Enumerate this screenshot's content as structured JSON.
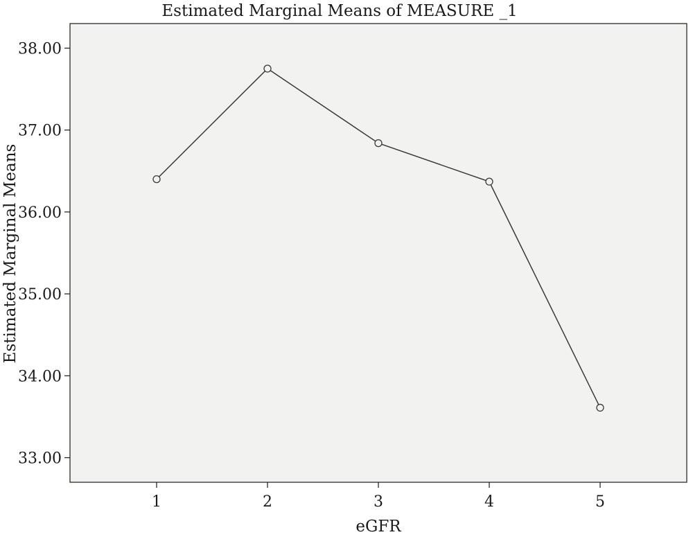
{
  "chart_data": {
    "type": "line",
    "title": "Estimated Marginal Means of MEASURE _1",
    "xlabel": "eGFR",
    "ylabel": "Estimated Marginal Means",
    "categories": [
      "1",
      "2",
      "3",
      "4",
      "5"
    ],
    "series": [
      {
        "values": [
          36.4,
          37.75,
          36.84,
          36.37,
          33.61
        ]
      }
    ],
    "ylim": [
      32.7,
      38.3
    ],
    "yticks": [
      33.0,
      34.0,
      35.0,
      36.0,
      37.0,
      38.0
    ],
    "ytick_labels": [
      "33.00",
      "34.00",
      "35.00",
      "36.00",
      "37.00",
      "38.00"
    ],
    "grid": false,
    "marker": "open-circle",
    "colors": {
      "plot_background": "#f2f2f0",
      "line": "#3a3a3a",
      "axis": "#1a1a1a"
    }
  }
}
